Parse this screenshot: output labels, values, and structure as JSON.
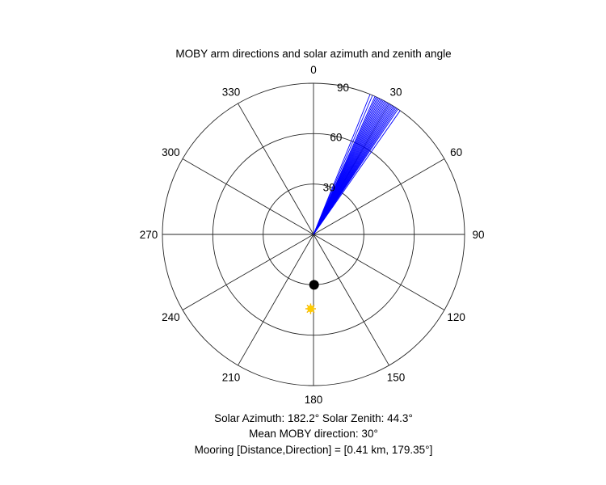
{
  "chart_data": {
    "type": "polar",
    "title": "MOBY arm directions and solar azimuth and zenith angle",
    "theta_zero": "top",
    "theta_direction": "clockwise",
    "angle_ticks": [
      "0",
      "30",
      "60",
      "90",
      "120",
      "150",
      "180",
      "210",
      "240",
      "270",
      "300",
      "330"
    ],
    "radial_ticks": [
      "30",
      "60",
      "90"
    ],
    "radial_max": 90,
    "arm_direction_color": "#0000ff",
    "arm_directions_deg": [
      22,
      23,
      24,
      24.5,
      25,
      25.5,
      26,
      26.5,
      27,
      27.5,
      28,
      28.5,
      29,
      29.5,
      30,
      30.5,
      31,
      31.5,
      32,
      32.5,
      33,
      33.5,
      34,
      35
    ],
    "mooring_marker": {
      "azimuth_deg": 179.35,
      "radius": 30,
      "color": "#000000"
    },
    "sun_marker": {
      "azimuth_deg": 182.2,
      "radius": 44.3,
      "color": "#ffcc00"
    },
    "captions": [
      "Solar Azimuth: 182.2°   Solar Zenith: 44.3°",
      "Mean MOBY direction: 30°",
      "Mooring [Distance,Direction] = [0.41 km, 179.35°]"
    ]
  }
}
